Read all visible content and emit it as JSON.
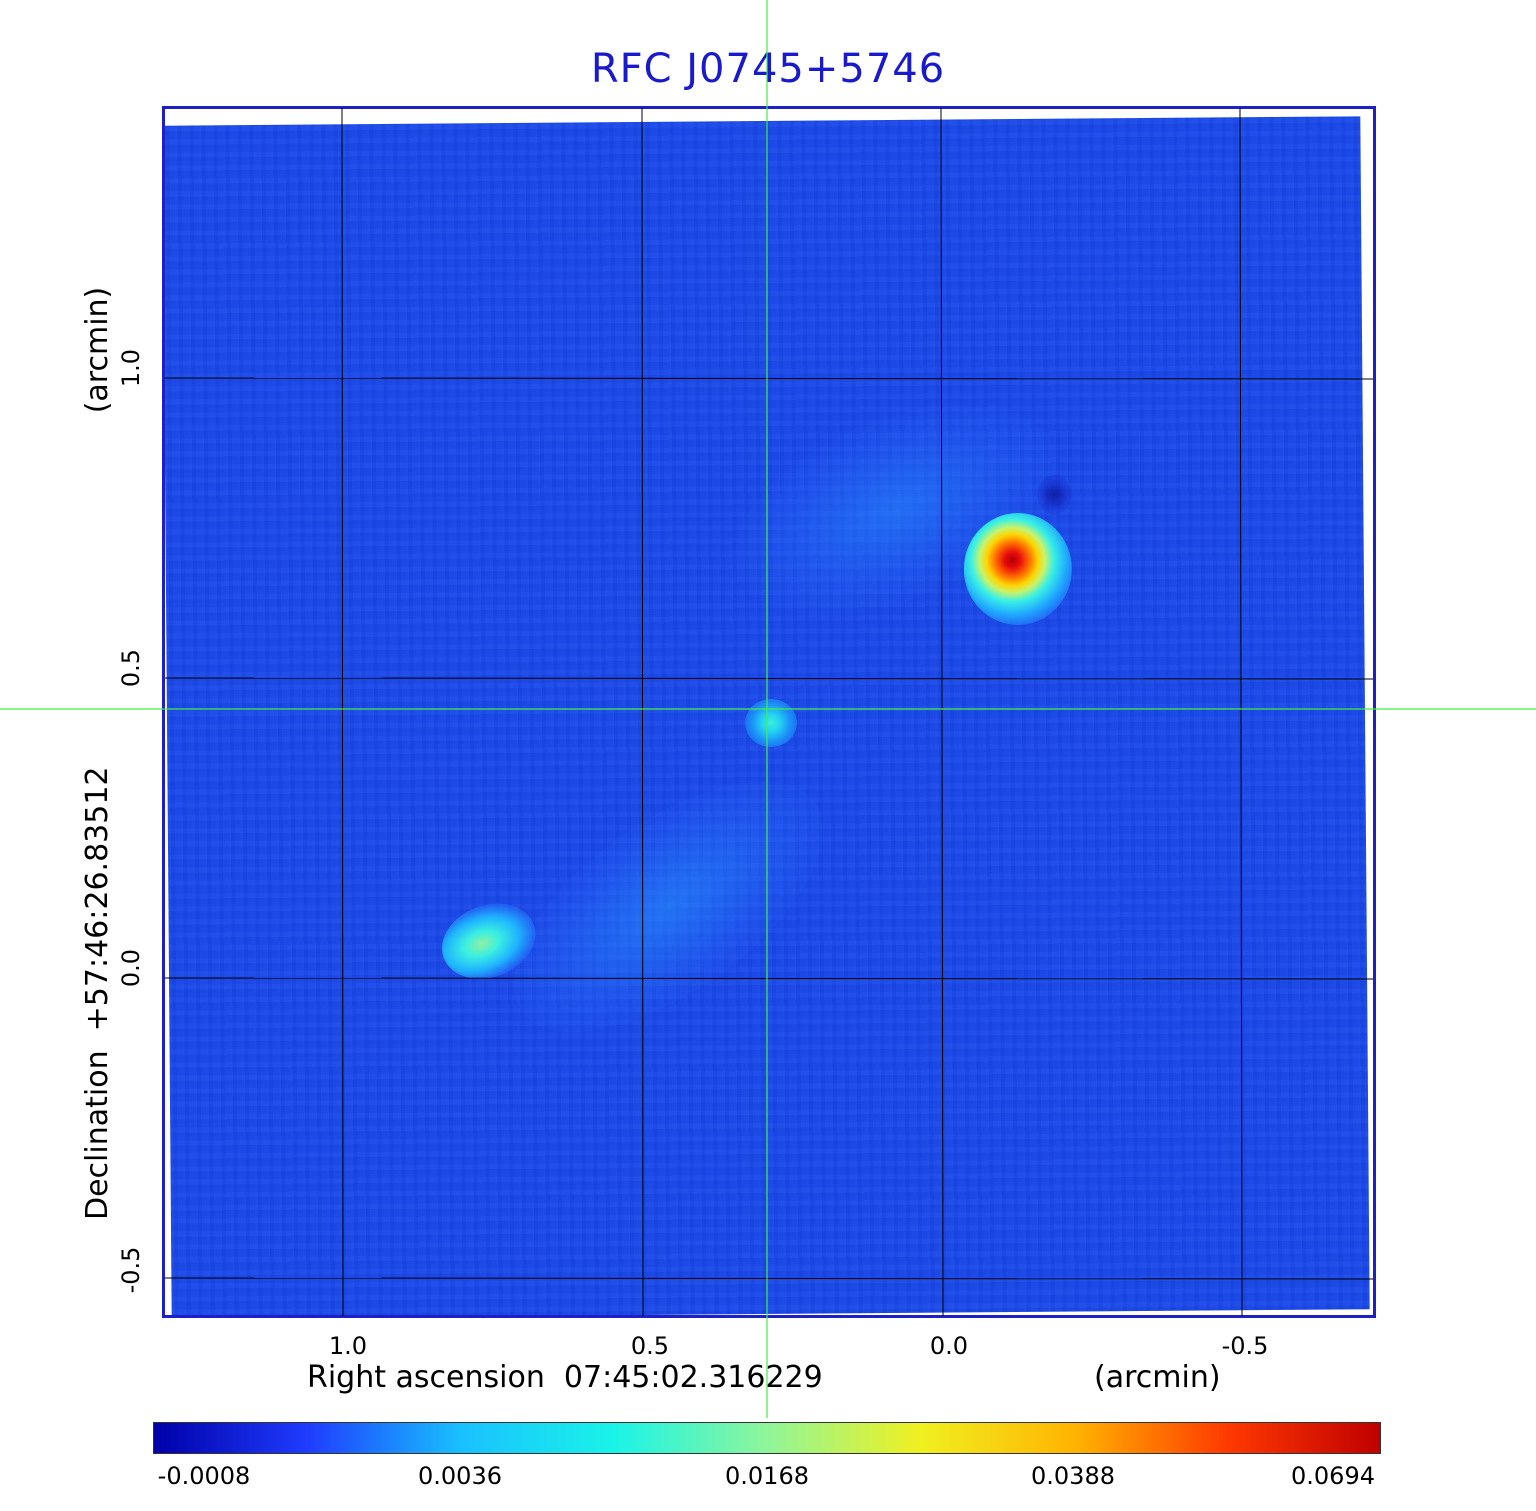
{
  "title": "RFC J0745+5746",
  "axes": {
    "x_label": "Right ascension  07:45:02.316229",
    "x_unit": "(arcmin)",
    "y_label": "Declination  +57:46:26.83512",
    "y_unit": "(arcmin)",
    "x_ticks": [
      "1.0",
      "0.5",
      "0.0",
      "-0.5"
    ],
    "y_ticks": [
      "1.0",
      "0.5",
      "0.0",
      "-0.5"
    ]
  },
  "colorbar": {
    "labels": [
      "-0.0008",
      "0.0036",
      "0.0168",
      "0.0388",
      "0.0694"
    ],
    "colors": [
      "#0000a8",
      "#1f3cff",
      "#19c0ff",
      "#19f3e8",
      "#8ff59a",
      "#f0f020",
      "#ffb400",
      "#ff3a00",
      "#c00000"
    ]
  },
  "style": {
    "title_color": "#1a1acd",
    "frame_color": "#1f1fc8",
    "crosshair_color": "#44ee44",
    "grid_color": "#000000"
  }
}
